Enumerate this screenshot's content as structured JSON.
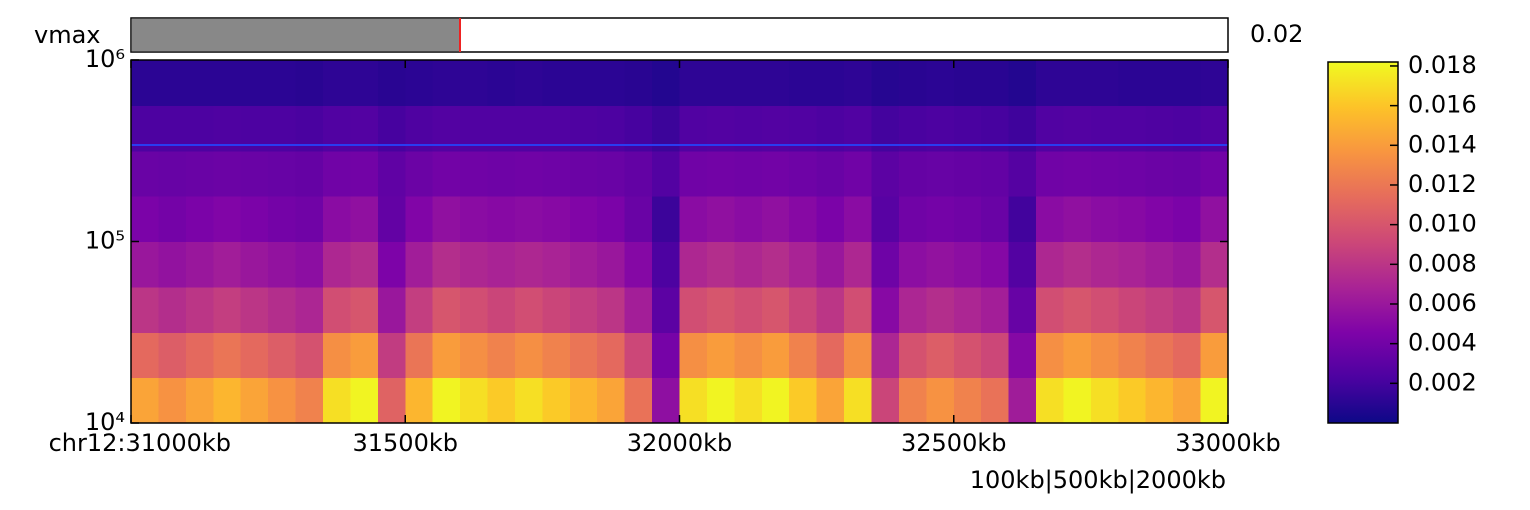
{
  "chart_data": {
    "type": "heatmap",
    "slider": {
      "label": "vmax",
      "value": 0.02
    },
    "x_edges": [
      31000,
      31050,
      31100,
      31150,
      31200,
      31250,
      31300,
      31350,
      31400,
      31450,
      31500,
      31550,
      31600,
      31650,
      31700,
      31750,
      31800,
      31850,
      31900,
      31950,
      32000,
      32050,
      32100,
      32150,
      32200,
      32250,
      32300,
      32350,
      32400,
      32450,
      32500,
      32550,
      32600,
      32650,
      32700,
      32750,
      32800,
      32850,
      32900,
      32950,
      33000
    ],
    "y_edges": [
      10000,
      17783,
      31623,
      56234,
      100000,
      177828,
      316228,
      562341,
      1000000
    ],
    "z": [
      [
        0.0144,
        0.0135,
        0.0144,
        0.0153,
        0.0144,
        0.0135,
        0.0126,
        0.0171,
        0.018,
        0.0108,
        0.0153,
        0.018,
        0.0171,
        0.0162,
        0.0171,
        0.0162,
        0.0153,
        0.0144,
        0.0117,
        0.0054,
        0.0171,
        0.018,
        0.0171,
        0.018,
        0.0162,
        0.0144,
        0.0171,
        0.009,
        0.0126,
        0.0135,
        0.0126,
        0.0117,
        0.0063,
        0.0171,
        0.018,
        0.0171,
        0.0162,
        0.0153,
        0.0144,
        0.018
      ],
      [
        0.0112,
        0.0105,
        0.0112,
        0.0119,
        0.0112,
        0.0105,
        0.0098,
        0.0133,
        0.014,
        0.0084,
        0.0119,
        0.014,
        0.0133,
        0.0126,
        0.0133,
        0.0126,
        0.0119,
        0.0112,
        0.0091,
        0.0042,
        0.0133,
        0.014,
        0.0133,
        0.014,
        0.0126,
        0.0112,
        0.0133,
        0.007,
        0.0098,
        0.0105,
        0.0098,
        0.0091,
        0.0049,
        0.0133,
        0.014,
        0.0133,
        0.0126,
        0.0119,
        0.0112,
        0.014
      ],
      [
        0.008,
        0.0075,
        0.008,
        0.0085,
        0.008,
        0.0075,
        0.007,
        0.0095,
        0.01,
        0.006,
        0.0085,
        0.01,
        0.0095,
        0.009,
        0.0095,
        0.009,
        0.0085,
        0.008,
        0.0065,
        0.003,
        0.0095,
        0.01,
        0.0095,
        0.01,
        0.009,
        0.008,
        0.0095,
        0.005,
        0.007,
        0.0075,
        0.007,
        0.0065,
        0.0035,
        0.0095,
        0.01,
        0.0095,
        0.009,
        0.0085,
        0.008,
        0.01
      ],
      [
        0.006,
        0.0056,
        0.006,
        0.0064,
        0.006,
        0.0056,
        0.0053,
        0.0071,
        0.0075,
        0.0045,
        0.0064,
        0.0075,
        0.0071,
        0.0068,
        0.0071,
        0.0068,
        0.0064,
        0.006,
        0.0049,
        0.0023,
        0.0071,
        0.0075,
        0.0071,
        0.0075,
        0.0068,
        0.006,
        0.0071,
        0.0038,
        0.0053,
        0.0056,
        0.0053,
        0.0049,
        0.0026,
        0.0071,
        0.0075,
        0.0071,
        0.0068,
        0.0064,
        0.006,
        0.0075
      ],
      [
        0.0044,
        0.0041,
        0.0044,
        0.0047,
        0.0044,
        0.0041,
        0.0039,
        0.0052,
        0.0055,
        0.0033,
        0.0047,
        0.0055,
        0.0052,
        0.005,
        0.0052,
        0.005,
        0.0047,
        0.0044,
        0.0036,
        0.0017,
        0.0052,
        0.0055,
        0.0052,
        0.0055,
        0.005,
        0.0044,
        0.0052,
        0.0028,
        0.0039,
        0.0041,
        0.0039,
        0.0036,
        0.0019,
        0.0052,
        0.0055,
        0.0052,
        0.005,
        0.0047,
        0.0044,
        0.0055
      ],
      [
        0.0036,
        0.0035,
        0.0036,
        0.0037,
        0.0036,
        0.0035,
        0.0034,
        0.0039,
        0.004,
        0.0032,
        0.0037,
        0.004,
        0.0039,
        0.0038,
        0.0039,
        0.0038,
        0.0037,
        0.0036,
        0.0033,
        0.0026,
        0.0039,
        0.004,
        0.0039,
        0.004,
        0.0038,
        0.0036,
        0.0039,
        0.003,
        0.0034,
        0.0035,
        0.0034,
        0.0033,
        0.0027,
        0.0039,
        0.004,
        0.0039,
        0.0038,
        0.0037,
        0.0036,
        0.004
      ],
      [
        0.0023,
        0.0023,
        0.0023,
        0.0024,
        0.0023,
        0.0023,
        0.0022,
        0.0025,
        0.0026,
        0.0021,
        0.0024,
        0.0026,
        0.0025,
        0.0025,
        0.0025,
        0.0025,
        0.0024,
        0.0023,
        0.0021,
        0.0017,
        0.0025,
        0.0026,
        0.0025,
        0.0026,
        0.0025,
        0.0023,
        0.0025,
        0.002,
        0.0022,
        0.0023,
        0.0022,
        0.0021,
        0.0018,
        0.0025,
        0.0026,
        0.0025,
        0.0025,
        0.0024,
        0.0023,
        0.0026
      ],
      [
        0.0011,
        0.0011,
        0.0011,
        0.0011,
        0.0011,
        0.0011,
        0.001,
        0.0012,
        0.0012,
        0.001,
        0.0011,
        0.0012,
        0.0012,
        0.0011,
        0.0012,
        0.0011,
        0.0011,
        0.0011,
        0.001,
        0.0008,
        0.0012,
        0.0012,
        0.0012,
        0.0012,
        0.0011,
        0.0011,
        0.0012,
        0.0009,
        0.001,
        0.0011,
        0.001,
        0.001,
        0.0008,
        0.0012,
        0.0012,
        0.0012,
        0.0011,
        0.0011,
        0.0011,
        0.0012
      ]
    ],
    "xlim": [
      31000,
      33000
    ],
    "xticks": [
      {
        "value": 31000,
        "label": "chr12:31000kb"
      },
      {
        "value": 31500,
        "label": "31500kb"
      },
      {
        "value": 32000,
        "label": "32000kb"
      },
      {
        "value": 32500,
        "label": "32500kb"
      },
      {
        "value": 33000,
        "label": "33000kb"
      }
    ],
    "ylim": [
      10000,
      1000000
    ],
    "yscale": "log",
    "yticks": [
      {
        "value": 10000,
        "label": "10⁴"
      },
      {
        "value": 100000,
        "label": "10⁵"
      },
      {
        "value": 1000000,
        "label": "10⁶"
      }
    ],
    "hline": 340000,
    "hline_color": "#2a3cf0",
    "colormap": "plasma",
    "clim": [
      0,
      0.0182
    ],
    "cticks": [
      0.002,
      0.004,
      0.006,
      0.008,
      {
        "value": 0.01,
        "label": "0.010"
      },
      0.012,
      0.014,
      0.016,
      0.018
    ],
    "resolutions": "100kb|500kb|2000kb"
  }
}
